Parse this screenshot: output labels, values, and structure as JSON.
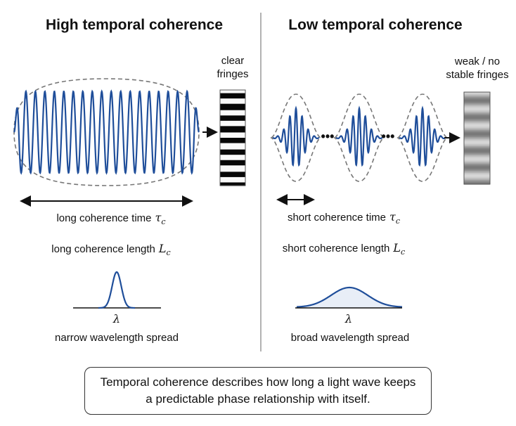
{
  "left": {
    "title": "High temporal coherence",
    "fringe_label_line1": "clear",
    "fringe_label_line2": "fringes",
    "time_label": "long coherence time",
    "time_symbol": "τ",
    "time_subscript": "c",
    "length_label": "long coherence length",
    "length_symbol": "L",
    "length_subscript": "c",
    "spectrum_symbol": "λ",
    "spectrum_label": "narrow wavelength spread"
  },
  "right": {
    "title": "Low temporal coherence",
    "fringe_label_line1": "weak / no",
    "fringe_label_line2": "stable fringes",
    "time_label": "short coherence time",
    "time_symbol": "τ",
    "time_subscript": "c",
    "length_label": "short coherence length",
    "length_symbol": "L",
    "length_subscript": "c",
    "spectrum_symbol": "λ",
    "spectrum_label": "broad wavelength spread"
  },
  "ellipsis": "•••",
  "caption_line1": "Temporal coherence describes how long a light wave keeps",
  "caption_line2": "a predictable phase relationship with itself.",
  "colors": {
    "wave": "#1f4e9a",
    "envelope": "#777777",
    "spectrum_fill": "#e8eef7",
    "divider": "#999999"
  }
}
